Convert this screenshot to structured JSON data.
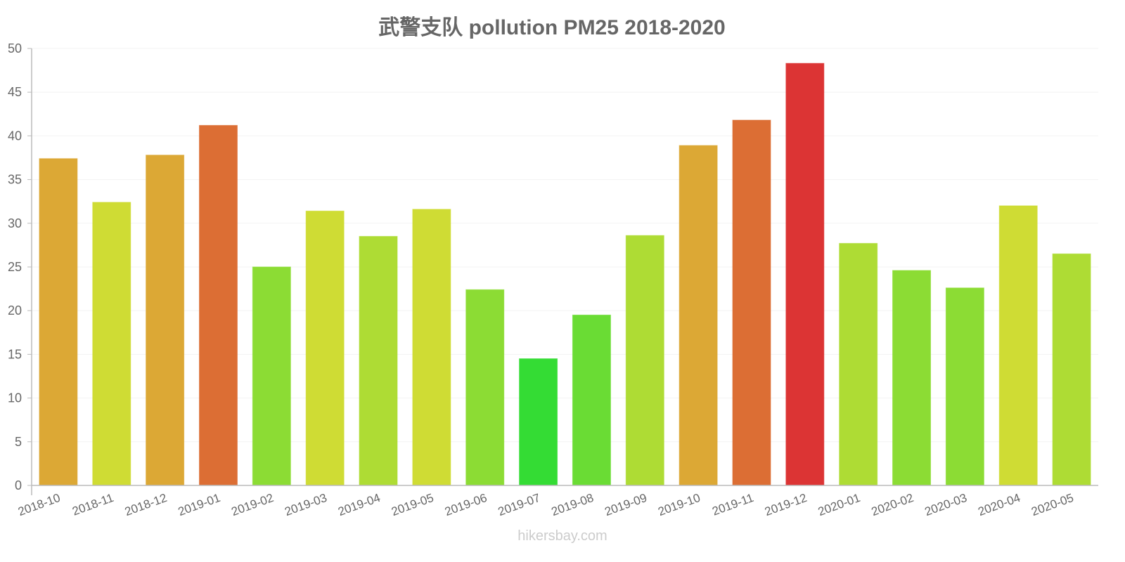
{
  "chart_data": {
    "type": "bar",
    "title": "武警支队 pollution PM25 2018-2020",
    "xlabel": "",
    "ylabel": "",
    "ylim": [
      0,
      50
    ],
    "yticks": [
      0,
      5,
      10,
      15,
      20,
      25,
      30,
      35,
      40,
      45,
      50
    ],
    "grid": true,
    "legend": null,
    "categories": [
      "2018-10",
      "2018-11",
      "2018-12",
      "2019-01",
      "2019-02",
      "2019-03",
      "2019-04",
      "2019-05",
      "2019-06",
      "2019-07",
      "2019-08",
      "2019-09",
      "2019-10",
      "2019-11",
      "2019-12",
      "2020-01",
      "2020-02",
      "2020-03",
      "2020-04",
      "2020-05"
    ],
    "values": [
      37.4,
      32.4,
      37.8,
      41.2,
      25.0,
      31.4,
      28.5,
      31.6,
      22.4,
      14.5,
      19.5,
      28.6,
      38.9,
      41.8,
      48.3,
      27.7,
      24.6,
      22.6,
      32.0,
      26.5
    ],
    "colors": [
      "#dca835",
      "#cfdc34",
      "#dca835",
      "#dc6e34",
      "#8cdc34",
      "#cfdc34",
      "#aedc34",
      "#cfdc34",
      "#8cdc34",
      "#34dc34",
      "#6adc34",
      "#aedc34",
      "#dca835",
      "#dc6e34",
      "#dc3434",
      "#aedc34",
      "#8cdc34",
      "#8cdc34",
      "#cfdc34",
      "#aedc34"
    ]
  },
  "title": "武警支队 pollution PM25 2018-2020",
  "watermark": "hikersbay.com"
}
